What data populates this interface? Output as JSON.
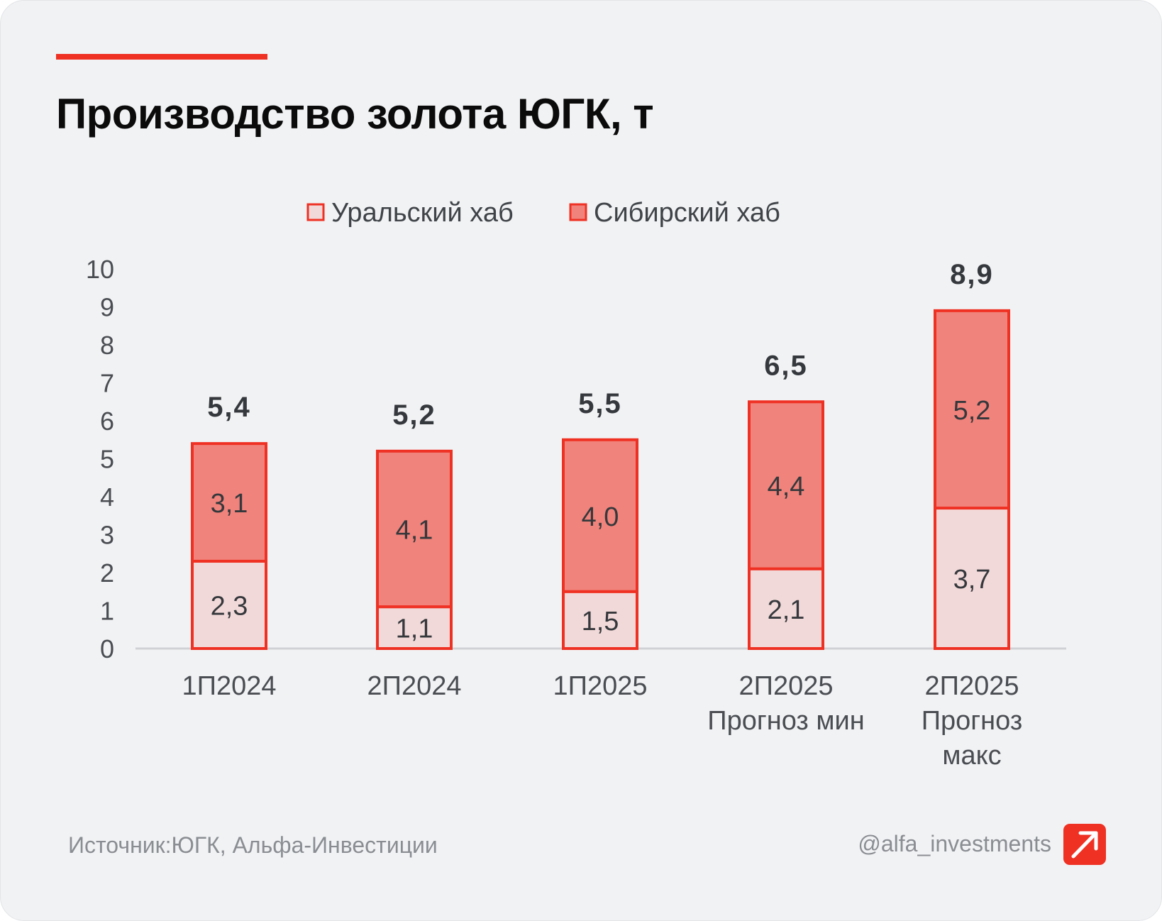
{
  "title": "Производство золота ЮГК, т",
  "footer": {
    "source": "Источник:ЮГК, Альфа-Инвестиции",
    "handle": "@alfa_investments",
    "logo_icon": "alfa-arrow-logo-icon"
  },
  "colors": {
    "accent": "#ef3124",
    "ural": "#f2d9d9",
    "siberia": "#f0837b",
    "stroke": "#ef3124"
  },
  "chart_data": {
    "type": "bar",
    "stacked": true,
    "categories": [
      [
        "1П2024"
      ],
      [
        "2П2024"
      ],
      [
        "1П2025"
      ],
      [
        "2П2025",
        "Прогноз мин"
      ],
      [
        "2П2025",
        "Прогноз",
        "макс"
      ]
    ],
    "series": [
      {
        "name": "Уральский хаб",
        "values": [
          2.3,
          1.1,
          1.5,
          2.1,
          3.7
        ],
        "labels": [
          "2,3",
          "1,1",
          "1,5",
          "2,1",
          "3,7"
        ]
      },
      {
        "name": "Сибирский хаб",
        "values": [
          3.1,
          4.1,
          4.0,
          4.4,
          5.2
        ],
        "labels": [
          "3,1",
          "4,1",
          "4,0",
          "4,4",
          "5,2"
        ]
      }
    ],
    "totals": [
      5.4,
      5.2,
      5.5,
      6.5,
      8.9
    ],
    "total_labels": [
      "5,4",
      "5,2",
      "5,5",
      "6,5",
      "8,9"
    ],
    "ylim": [
      0,
      10
    ],
    "yticks": [
      "0",
      "1",
      "2",
      "3",
      "4",
      "5",
      "6",
      "7",
      "8",
      "9",
      "10"
    ],
    "grid": false,
    "legend_position": "top-center"
  }
}
